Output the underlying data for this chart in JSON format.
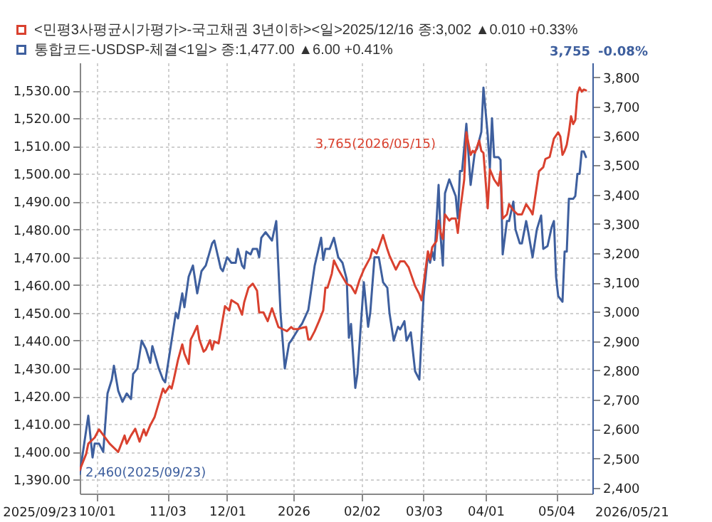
{
  "chart_data": {
    "type": "line",
    "xlim": [
      "2025-09-23",
      "2026-05-21"
    ],
    "xticks": [
      {
        "value": "2025-10-01",
        "label": "10/01"
      },
      {
        "value": "2025-11-03",
        "label": "11/03"
      },
      {
        "value": "2025-12-01",
        "label": "12/01"
      },
      {
        "value": "2026-01-01",
        "label": "2026"
      },
      {
        "value": "2026-02-02",
        "label": "02/02"
      },
      {
        "value": "2026-03-03",
        "label": "03/03"
      },
      {
        "value": "2026-04-01",
        "label": "04/01"
      },
      {
        "value": "2026-05-04",
        "label": "05/04"
      }
    ],
    "ylim": [
      1385,
      1540
    ],
    "yticks": [
      {
        "value": 1390,
        "label": "1,390.00"
      },
      {
        "value": 1400,
        "label": "1,400.00"
      },
      {
        "value": 1410,
        "label": "1,410.00"
      },
      {
        "value": 1420,
        "label": "1,420.00"
      },
      {
        "value": 1430,
        "label": "1,430.00"
      },
      {
        "value": 1440,
        "label": "1,440.00"
      },
      {
        "value": 1450,
        "label": "1,450.00"
      },
      {
        "value": 1460,
        "label": "1,460.00"
      },
      {
        "value": 1470,
        "label": "1,470.00"
      },
      {
        "value": 1480,
        "label": "1,480.00"
      },
      {
        "value": 1490,
        "label": "1,490.00"
      },
      {
        "value": 1500,
        "label": "1,500.00"
      },
      {
        "value": 1510,
        "label": "1,510.00"
      },
      {
        "value": 1520,
        "label": "1,520.00"
      },
      {
        "value": 1530,
        "label": "1,530.00"
      }
    ],
    "y2lim": [
      2380,
      3850
    ],
    "y2ticks": [
      {
        "value": 2400,
        "label": "2,400"
      },
      {
        "value": 2500,
        "label": "2,500"
      },
      {
        "value": 2600,
        "label": "2,600"
      },
      {
        "value": 2700,
        "label": "2,700"
      },
      {
        "value": 2800,
        "label": "2,800"
      },
      {
        "value": 2900,
        "label": "2,900"
      },
      {
        "value": 3000,
        "label": "3,000"
      },
      {
        "value": 3100,
        "label": "3,100"
      },
      {
        "value": 3200,
        "label": "3,200"
      },
      {
        "value": 3300,
        "label": "3,300"
      },
      {
        "value": 3400,
        "label": "3,400"
      },
      {
        "value": 3500,
        "label": "3,500"
      },
      {
        "value": 3600,
        "label": "3,600"
      },
      {
        "value": 3700,
        "label": "3,700"
      },
      {
        "value": 3800,
        "label": "3,800"
      }
    ],
    "grid": true,
    "legend": "top left",
    "annotations": [
      "2,460(2025/09/23)",
      "3,765(2026/05/15)",
      "3,755",
      "-0.08%",
      "2025/09/23",
      "2026/05/21"
    ],
    "series": [
      {
        "name": "<민평3사평균시가평가>-국고채권 3년이하><일>2025/12/16 종:3,002 ▲0.010 +0.33%",
        "color": "#d9412f",
        "axis": "y2",
        "x": [
          "2025-09-23",
          "2025-09-26",
          "2025-09-27",
          "2025-09-30",
          "2025-10-02",
          "2025-10-04",
          "2025-10-07",
          "2025-10-11",
          "2025-10-14",
          "2025-10-15",
          "2025-10-17",
          "2025-10-19",
          "2025-10-21",
          "2025-10-23",
          "2025-10-24",
          "2025-10-26",
          "2025-10-28",
          "2025-10-30",
          "2025-11-01",
          "2025-11-02",
          "2025-11-04",
          "2025-11-05",
          "2025-11-06",
          "2025-11-08",
          "2025-11-10",
          "2025-11-11",
          "2025-11-13",
          "2025-11-14",
          "2025-11-15",
          "2025-11-17",
          "2025-11-18",
          "2025-11-20",
          "2025-11-21",
          "2025-11-23",
          "2025-11-24",
          "2025-11-25",
          "2025-11-27",
          "2025-11-29",
          "2025-11-30",
          "2025-12-02",
          "2025-12-03",
          "2025-12-06",
          "2025-12-08",
          "2025-12-09",
          "2025-12-11",
          "2025-12-13",
          "2025-12-15",
          "2025-12-16",
          "2025-12-18",
          "2025-12-20",
          "2025-12-22",
          "2025-12-23",
          "2025-12-25",
          "2025-12-27",
          "2025-12-29",
          "2025-12-31",
          "2026-01-01",
          "2026-01-03",
          "2026-01-05",
          "2026-01-07",
          "2026-01-08",
          "2026-01-09",
          "2026-01-11",
          "2026-01-13",
          "2026-01-15",
          "2026-01-16",
          "2026-01-17",
          "2026-01-19",
          "2026-01-20",
          "2026-01-22",
          "2026-01-24",
          "2026-01-26",
          "2026-01-28",
          "2026-01-30",
          "2026-02-01",
          "2026-02-03",
          "2026-02-06",
          "2026-02-07",
          "2026-02-09",
          "2026-02-12",
          "2026-02-14",
          "2026-02-15",
          "2026-02-18",
          "2026-02-20",
          "2026-02-22",
          "2026-02-24",
          "2026-02-27",
          "2026-03-01",
          "2026-03-02",
          "2026-03-05",
          "2026-03-06",
          "2026-03-07",
          "2026-03-09",
          "2026-03-10",
          "2026-03-11",
          "2026-03-12",
          "2026-03-13",
          "2026-03-15",
          "2026-03-16",
          "2026-03-18",
          "2026-03-19",
          "2026-03-20",
          "2026-03-22",
          "2026-03-23",
          "2026-03-25",
          "2026-03-26",
          "2026-03-27",
          "2026-03-29",
          "2026-03-30",
          "2026-03-31",
          "2026-04-02",
          "2026-04-03",
          "2026-04-05",
          "2026-04-07",
          "2026-04-08",
          "2026-04-09",
          "2026-04-11",
          "2026-04-12",
          "2026-04-14",
          "2026-04-16",
          "2026-04-18",
          "2026-04-20",
          "2026-04-22",
          "2026-04-23",
          "2026-04-24",
          "2026-04-26",
          "2026-04-28",
          "2026-04-29",
          "2026-05-01",
          "2026-05-03",
          "2026-05-05",
          "2026-05-06",
          "2026-05-07",
          "2026-05-08",
          "2026-05-09",
          "2026-05-10",
          "2026-05-11",
          "2026-05-12",
          "2026-05-13",
          "2026-05-14",
          "2026-05-15",
          "2026-05-16",
          "2026-05-17",
          "2026-05-18"
        ],
        "values": [
          2460,
          2515,
          2550,
          2571,
          2599,
          2580,
          2550,
          2522,
          2578,
          2550,
          2578,
          2601,
          2557,
          2599,
          2578,
          2613,
          2640,
          2689,
          2738,
          2724,
          2747,
          2738,
          2768,
          2836,
          2889,
          2857,
          2822,
          2906,
          2920,
          2952,
          2906,
          2864,
          2871,
          2903,
          2871,
          2899,
          2892,
          2977,
          3019,
          3005,
          3040,
          3026,
          2990,
          3033,
          3082,
          3096,
          3072,
          2998,
          2998,
          2968,
          3012,
          2991,
          2948,
          2941,
          2934,
          2948,
          2941,
          2941,
          2945,
          2948,
          2906,
          2906,
          2934,
          2968,
          3005,
          3082,
          3082,
          3130,
          3175,
          3145,
          3120,
          3095,
          3088,
          3063,
          3109,
          3144,
          3185,
          3213,
          3199,
          3262,
          3213,
          3192,
          3144,
          3172,
          3172,
          3151,
          3088,
          3060,
          3039,
          3206,
          3178,
          3220,
          3241,
          3311,
          3269,
          3248,
          3332,
          3311,
          3318,
          3318,
          3269,
          3339,
          3451,
          3612,
          3535,
          3549,
          3542,
          3584,
          3549,
          3542,
          3353,
          3486,
          3451,
          3430,
          3479,
          3318,
          3332,
          3367,
          3346,
          3332,
          3332,
          3367,
          3346,
          3332,
          3381,
          3479,
          3493,
          3521,
          3528,
          3591,
          3612,
          3598,
          3535,
          3549,
          3570,
          3612,
          3667,
          3640,
          3654,
          3744,
          3765,
          3751,
          3758,
          3755
        ]
      },
      {
        "name": "통합코드-USDSP-체결<1일> 종:1,477.00 ▲6.00 +0.41%",
        "color": "#3e5f9e",
        "x": [
          "2025-09-23",
          "2025-09-27",
          "2025-09-29",
          "2025-09-30",
          "2025-10-02",
          "2025-10-04",
          "2025-10-06",
          "2025-10-08",
          "2025-10-09",
          "2025-10-11",
          "2025-10-13",
          "2025-10-15",
          "2025-10-17",
          "2025-10-18",
          "2025-10-20",
          "2025-10-22",
          "2025-10-24",
          "2025-10-26",
          "2025-10-27",
          "2025-10-30",
          "2025-11-01",
          "2025-11-02",
          "2025-11-03",
          "2025-11-05",
          "2025-11-07",
          "2025-11-08",
          "2025-11-10",
          "2025-11-11",
          "2025-11-13",
          "2025-11-15",
          "2025-11-17",
          "2025-11-19",
          "2025-11-21",
          "2025-11-24",
          "2025-11-25",
          "2025-11-28",
          "2025-11-29",
          "2025-12-01",
          "2025-12-03",
          "2025-12-05",
          "2025-12-06",
          "2025-12-08",
          "2025-12-09",
          "2025-12-10",
          "2025-12-12",
          "2025-12-13",
          "2025-12-15",
          "2025-12-16",
          "2025-12-17",
          "2025-12-19",
          "2025-12-22",
          "2025-12-24",
          "2025-12-26",
          "2025-12-28",
          "2025-12-30",
          "2025-12-31",
          "2026-01-04",
          "2026-01-05",
          "2026-01-08",
          "2026-01-11",
          "2026-01-14",
          "2026-01-15",
          "2026-01-16",
          "2026-01-18",
          "2026-01-20",
          "2026-01-22",
          "2026-01-24",
          "2026-01-26",
          "2026-01-27",
          "2026-01-28",
          "2026-01-30",
          "2026-01-31",
          "2026-02-01",
          "2026-02-03",
          "2026-02-05",
          "2026-02-06",
          "2026-02-08",
          "2026-02-10",
          "2026-02-12",
          "2026-02-14",
          "2026-02-15",
          "2026-02-17",
          "2026-02-19",
          "2026-02-20",
          "2026-02-22",
          "2026-02-23",
          "2026-02-25",
          "2026-02-27",
          "2026-03-01",
          "2026-03-03",
          "2026-03-05",
          "2026-03-06",
          "2026-03-07",
          "2026-03-08",
          "2026-03-10",
          "2026-03-11",
          "2026-03-12",
          "2026-03-13",
          "2026-03-15",
          "2026-03-16",
          "2026-03-18",
          "2026-03-19",
          "2026-03-20",
          "2026-03-21",
          "2026-03-23",
          "2026-03-25",
          "2026-03-27",
          "2026-03-28",
          "2026-03-30",
          "2026-03-31",
          "2026-04-02",
          "2026-04-03",
          "2026-04-04",
          "2026-04-05",
          "2026-04-07",
          "2026-04-08",
          "2026-04-09",
          "2026-04-11",
          "2026-04-12",
          "2026-04-14",
          "2026-04-15",
          "2026-04-17",
          "2026-04-18",
          "2026-04-20",
          "2026-04-21",
          "2026-04-23",
          "2026-04-25",
          "2026-04-27",
          "2026-04-28",
          "2026-04-30",
          "2026-05-02",
          "2026-05-03",
          "2026-05-04",
          "2026-05-05",
          "2026-05-07",
          "2026-05-08",
          "2026-05-09",
          "2026-05-10",
          "2026-05-12",
          "2026-05-13",
          "2026-05-14",
          "2026-05-15",
          "2026-05-16",
          "2026-05-17",
          "2026-05-18"
        ],
        "values": [
          1392,
          1413,
          1398,
          1403,
          1403,
          1400,
          1421,
          1426,
          1431,
          1422,
          1418,
          1421,
          1419,
          1428,
          1430,
          1440,
          1437,
          1432,
          1438,
          1430,
          1426,
          1425,
          1430,
          1440,
          1450,
          1448,
          1457,
          1452,
          1463,
          1467,
          1457,
          1465,
          1467,
          1475,
          1476,
          1466,
          1465,
          1470,
          1468,
          1468,
          1473,
          1467,
          1466,
          1472,
          1471,
          1473,
          1473,
          1470,
          1477,
          1479,
          1476,
          1483,
          1450,
          1430,
          1439,
          1440,
          1445,
          1446,
          1451,
          1467,
          1477,
          1469,
          1473,
          1473,
          1477,
          1470,
          1468,
          1462,
          1441,
          1446,
          1423,
          1428,
          1439,
          1461,
          1445,
          1450,
          1470,
          1470,
          1461,
          1459,
          1450,
          1440,
          1445,
          1444,
          1447,
          1440,
          1443,
          1429,
          1426,
          1456,
          1471,
          1468,
          1472,
          1469,
          1496,
          1477,
          1467,
          1493,
          1498,
          1496,
          1492,
          1484,
          1501,
          1501,
          1518,
          1496,
          1508,
          1509,
          1515,
          1531,
          1514,
          1502,
          1520,
          1506,
          1506,
          1505,
          1471,
          1483,
          1483,
          1490,
          1480,
          1475,
          1475,
          1483,
          1479,
          1470,
          1480,
          1485,
          1473,
          1474,
          1481,
          1483,
          1463,
          1456,
          1454,
          1472,
          1472,
          1491,
          1491,
          1492,
          1500,
          1500,
          1508,
          1508,
          1506
        ]
      }
    ]
  }
}
